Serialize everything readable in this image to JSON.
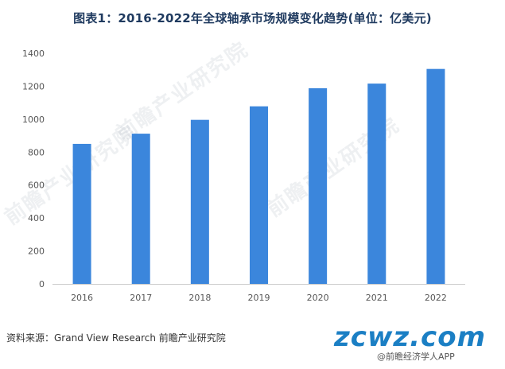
{
  "title": "图表1：2016-2022年全球轴承市场规模变化趋势(单位：亿美元)",
  "source": "资料来源：Grand View Research 前瞻产业研究院",
  "watermark": "前瞻产业研究院",
  "brand": "zcwz.com",
  "brand_sub": "@前瞻经济学人APP",
  "colors": {
    "bar": "#3b86dc",
    "title": "#1f3a5f",
    "brand": "#1b7fc4"
  },
  "chart_data": {
    "type": "bar",
    "title": "图表1：2016-2022年全球轴承市场规模变化趋势(单位：亿美元)",
    "categories": [
      "2016",
      "2017",
      "2018",
      "2019",
      "2020",
      "2021",
      "2022"
    ],
    "values": [
      850,
      912,
      996,
      1078,
      1188,
      1216,
      1305
    ],
    "ylim": [
      0,
      1400
    ],
    "yticks": [
      0,
      200,
      400,
      600,
      800,
      1000,
      1200,
      1400
    ],
    "xlabel": "",
    "ylabel": "",
    "grid": false,
    "legend": "none"
  }
}
